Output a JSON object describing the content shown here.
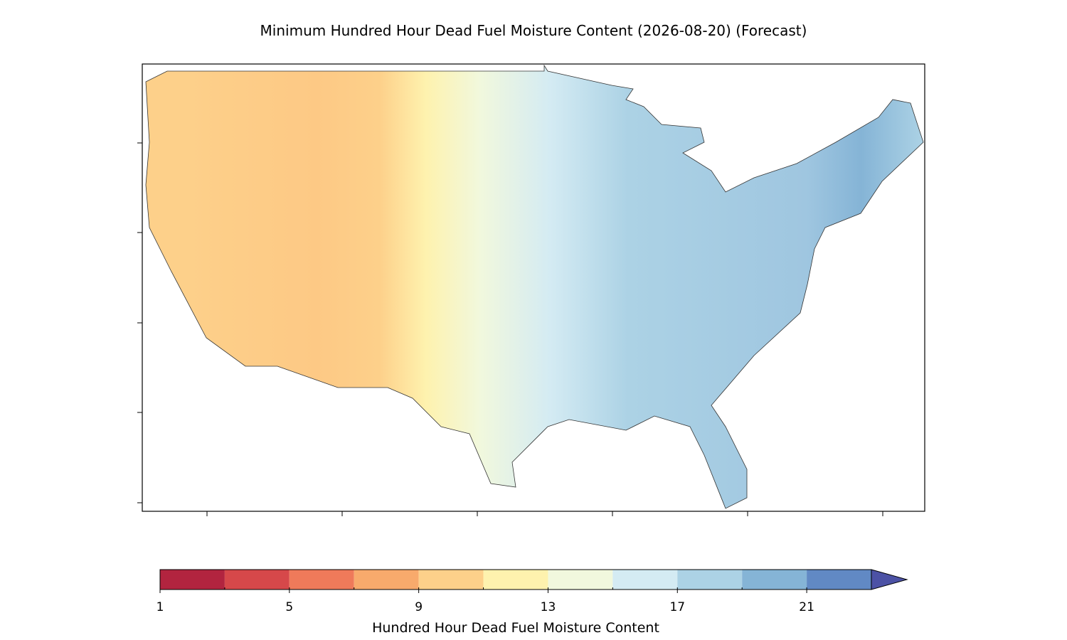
{
  "chart_data": {
    "type": "contour-map",
    "title": "Minimum Hundred Hour Dead Fuel Moisture Content (2026-08-20) (Forecast)",
    "colorbar": {
      "label": "Hundred Hour Dead Fuel Moisture Content",
      "levels": [
        1,
        3,
        5,
        7,
        9,
        11,
        13,
        15,
        17,
        19,
        21,
        23
      ],
      "colors": [
        "#b2243f",
        "#d6484a",
        "#ef7a5a",
        "#f8aa6c",
        "#fdd08a",
        "#fef2ae",
        "#f1f8dd",
        "#d4ebf3",
        "#acd2e5",
        "#85b4d6",
        "#6189c4"
      ],
      "extend_color": "#4c52a5",
      "ticks": [
        1,
        5,
        9,
        13,
        17,
        21
      ]
    }
  }
}
